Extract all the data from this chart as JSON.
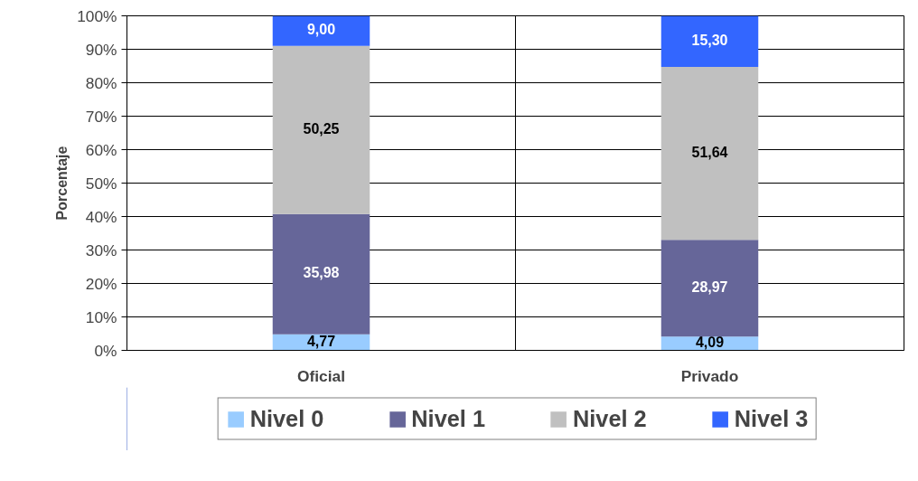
{
  "chart_data": {
    "type": "bar",
    "stacked": true,
    "ylabel": "Porcentaje",
    "categories": [
      "Oficial",
      "Privado"
    ],
    "series": [
      {
        "name": "Nivel 0",
        "color": "#99ccff",
        "values": [
          4.77,
          4.09
        ],
        "value_labels": [
          "4,77",
          "4,09"
        ]
      },
      {
        "name": "Nivel 1",
        "color": "#666699",
        "values": [
          35.98,
          28.97
        ],
        "value_labels": [
          "35,98",
          "28,97"
        ]
      },
      {
        "name": "Nivel 2",
        "color": "#c0c0c0",
        "values": [
          50.25,
          51.64
        ],
        "value_labels": [
          "50,25",
          "51,64"
        ]
      },
      {
        "name": "Nivel 3",
        "color": "#3366ff",
        "values": [
          9.0,
          15.3
        ],
        "value_labels": [
          "9,00",
          "15,30"
        ]
      }
    ],
    "ylim": [
      0,
      100
    ],
    "yticks": [
      {
        "value": 0,
        "label": "0%"
      },
      {
        "value": 10,
        "label": "10%"
      },
      {
        "value": 20,
        "label": "20%"
      },
      {
        "value": 30,
        "label": "30%"
      },
      {
        "value": 40,
        "label": "40%"
      },
      {
        "value": 50,
        "label": "50%"
      },
      {
        "value": 60,
        "label": "60%"
      },
      {
        "value": 70,
        "label": "70%"
      },
      {
        "value": 80,
        "label": "80%"
      },
      {
        "value": 90,
        "label": "90%"
      },
      {
        "value": 100,
        "label": "100%"
      }
    ],
    "grid": true,
    "legend": "bottom"
  }
}
